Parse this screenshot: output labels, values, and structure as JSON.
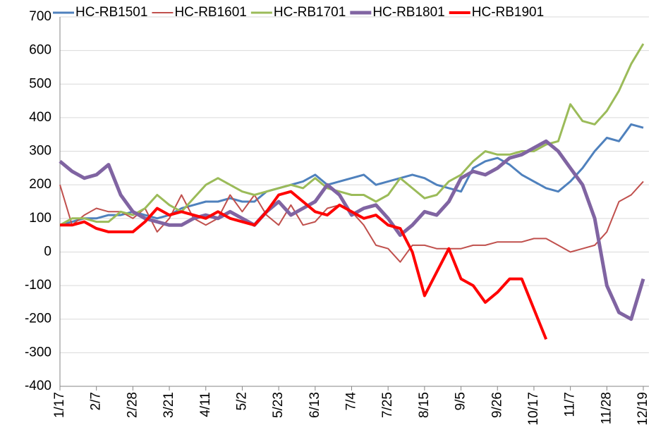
{
  "chart_data": {
    "type": "line",
    "categories": [
      "1/17",
      null,
      null,
      "2/7",
      null,
      null,
      "2/28",
      null,
      null,
      "3/21",
      null,
      null,
      "4/11",
      null,
      null,
      "5/2",
      null,
      null,
      "5/23",
      null,
      null,
      "6/13",
      null,
      null,
      "7/4",
      null,
      null,
      "7/25",
      null,
      null,
      "8/15",
      null,
      null,
      "9/5",
      null,
      null,
      "9/26",
      null,
      null,
      "10/17",
      null,
      null,
      "11/7",
      null,
      null,
      "11/28",
      null,
      null,
      "12/19"
    ],
    "ylim": [
      -400,
      700
    ],
    "yticks": [
      -400,
      -300,
      -200,
      -100,
      0,
      100,
      200,
      300,
      400,
      500,
      600,
      700
    ],
    "grid": true,
    "legend": "top",
    "series": [
      {
        "name": "HC-RB1501",
        "color": "#4f81bd",
        "width": 3,
        "values": [
          80,
          90,
          100,
          100,
          110,
          110,
          120,
          110,
          100,
          110,
          130,
          140,
          150,
          150,
          160,
          150,
          150,
          180,
          190,
          200,
          210,
          230,
          200,
          210,
          220,
          230,
          200,
          210,
          220,
          230,
          220,
          200,
          190,
          180,
          250,
          270,
          280,
          260,
          230,
          210,
          190,
          180,
          210,
          250,
          300,
          340,
          330,
          380,
          370
        ]
      },
      {
        "name": "HC-RB1601",
        "color": "#c0504d",
        "width": 2,
        "values": [
          200,
          80,
          110,
          130,
          120,
          120,
          100,
          130,
          60,
          100,
          170,
          100,
          80,
          100,
          170,
          120,
          170,
          110,
          80,
          140,
          80,
          90,
          130,
          140,
          120,
          80,
          20,
          10,
          -30,
          20,
          20,
          10,
          10,
          10,
          20,
          20,
          30,
          30,
          30,
          40,
          40,
          20,
          0,
          10,
          20,
          60,
          150,
          170,
          210
        ]
      },
      {
        "name": "HC-RB1701",
        "color": "#9bbb59",
        "width": 3,
        "values": [
          80,
          100,
          100,
          90,
          90,
          120,
          110,
          130,
          170,
          140,
          120,
          160,
          200,
          220,
          200,
          180,
          170,
          180,
          190,
          200,
          190,
          220,
          190,
          180,
          170,
          170,
          150,
          170,
          220,
          190,
          160,
          170,
          210,
          230,
          270,
          300,
          290,
          290,
          300,
          300,
          320,
          330,
          440,
          390,
          380,
          420,
          480,
          560,
          620
        ]
      },
      {
        "name": "HC-RB1801",
        "color": "#8064a2",
        "width": 5,
        "values": [
          270,
          240,
          220,
          230,
          260,
          170,
          120,
          100,
          90,
          80,
          80,
          100,
          110,
          100,
          120,
          100,
          80,
          120,
          150,
          110,
          130,
          150,
          200,
          170,
          110,
          130,
          140,
          100,
          50,
          80,
          120,
          110,
          150,
          220,
          240,
          230,
          250,
          280,
          290,
          310,
          330,
          300,
          250,
          200,
          100,
          -100,
          -180,
          -200,
          -80
        ]
      },
      {
        "name": "HC-RB1901",
        "color": "#ff0000",
        "width": 4,
        "values": [
          80,
          80,
          90,
          70,
          60,
          60,
          60,
          90,
          130,
          110,
          120,
          110,
          100,
          120,
          100,
          90,
          80,
          120,
          170,
          180,
          150,
          120,
          110,
          140,
          120,
          100,
          110,
          80,
          70,
          0,
          -130,
          -60,
          10,
          -80,
          -100,
          -150,
          -120,
          -80,
          -80,
          -170,
          -260,
          null,
          null,
          null,
          null,
          null,
          null,
          null,
          null
        ]
      }
    ]
  }
}
